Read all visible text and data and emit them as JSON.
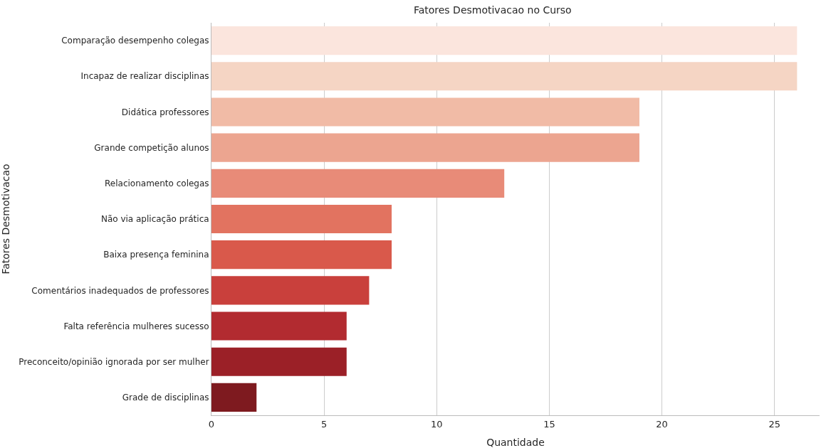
{
  "chart_data": {
    "type": "bar",
    "orientation": "horizontal",
    "title": "Fatores Desmotivacao no Curso",
    "xlabel": "Quantidade",
    "ylabel": "Fatores Desmotivacao",
    "categories": [
      "Comparação desempenho colegas",
      "Incapaz de realizar disciplinas",
      "Didática professores",
      "Grande competição alunos",
      "Relacionamento colegas",
      "Não via aplicação prática",
      "Baixa presença feminina",
      "Comentários inadequados de professores",
      "Falta referência mulheres sucesso",
      "Preconceito/opinião ignorada por ser mulher",
      "Grade de disciplinas"
    ],
    "values": [
      26,
      26,
      19,
      19,
      13,
      8,
      8,
      7,
      6,
      6,
      2
    ],
    "colors": [
      "#fbe5dd",
      "#f5d5c4",
      "#f1bba6",
      "#eca590",
      "#e88b78",
      "#e27360",
      "#d9594b",
      "#c9403c",
      "#b22b30",
      "#9b2027",
      "#7e1a1f"
    ],
    "xlim": [
      0,
      27
    ],
    "xticks": [
      0,
      5,
      10,
      15,
      20,
      25
    ],
    "grid": "x"
  }
}
